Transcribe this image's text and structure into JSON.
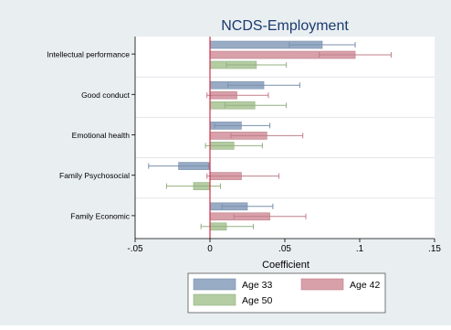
{
  "chart_data": {
    "type": "bar",
    "orientation": "horizontal",
    "title": "NCDS-Employment",
    "xlabel": "Coefficient",
    "xlim": [
      -0.05,
      0.15
    ],
    "xticks": [
      {
        "value": -0.05,
        "label": "-.05"
      },
      {
        "value": 0,
        "label": "0"
      },
      {
        "value": 0.05,
        "label": ".05"
      },
      {
        "value": 0.1,
        "label": ".1"
      },
      {
        "value": 0.15,
        "label": ".15"
      }
    ],
    "grid": true,
    "legend_position": "bottom",
    "categories": [
      "Intellectual performance",
      "Good conduct",
      "Emotional health",
      "Family Psychosocial",
      "Family Economic"
    ],
    "series": [
      {
        "name": "Age 33",
        "color": "#98abc4",
        "edge": "#7990ad",
        "values": [
          0.075,
          0.036,
          0.021,
          -0.021,
          0.025
        ],
        "ci_low": [
          0.053,
          0.012,
          0.003,
          -0.041,
          0.008
        ],
        "ci_high": [
          0.097,
          0.06,
          0.04,
          -0.001,
          0.042
        ]
      },
      {
        "name": "Age 42",
        "color": "#d8a1aa",
        "edge": "#c07f8a",
        "values": [
          0.097,
          0.018,
          0.038,
          0.021,
          0.04
        ],
        "ci_low": [
          0.073,
          -0.002,
          0.014,
          -0.002,
          0.016
        ],
        "ci_high": [
          0.121,
          0.039,
          0.062,
          0.046,
          0.064
        ]
      },
      {
        "name": "Age 50",
        "color": "#b3cca2",
        "edge": "#94b081",
        "values": [
          0.031,
          0.03,
          0.016,
          -0.011,
          0.011
        ],
        "ci_low": [
          0.011,
          0.01,
          -0.003,
          -0.029,
          -0.006
        ],
        "ci_high": [
          0.051,
          0.051,
          0.035,
          0.007,
          0.029
        ]
      }
    ]
  }
}
